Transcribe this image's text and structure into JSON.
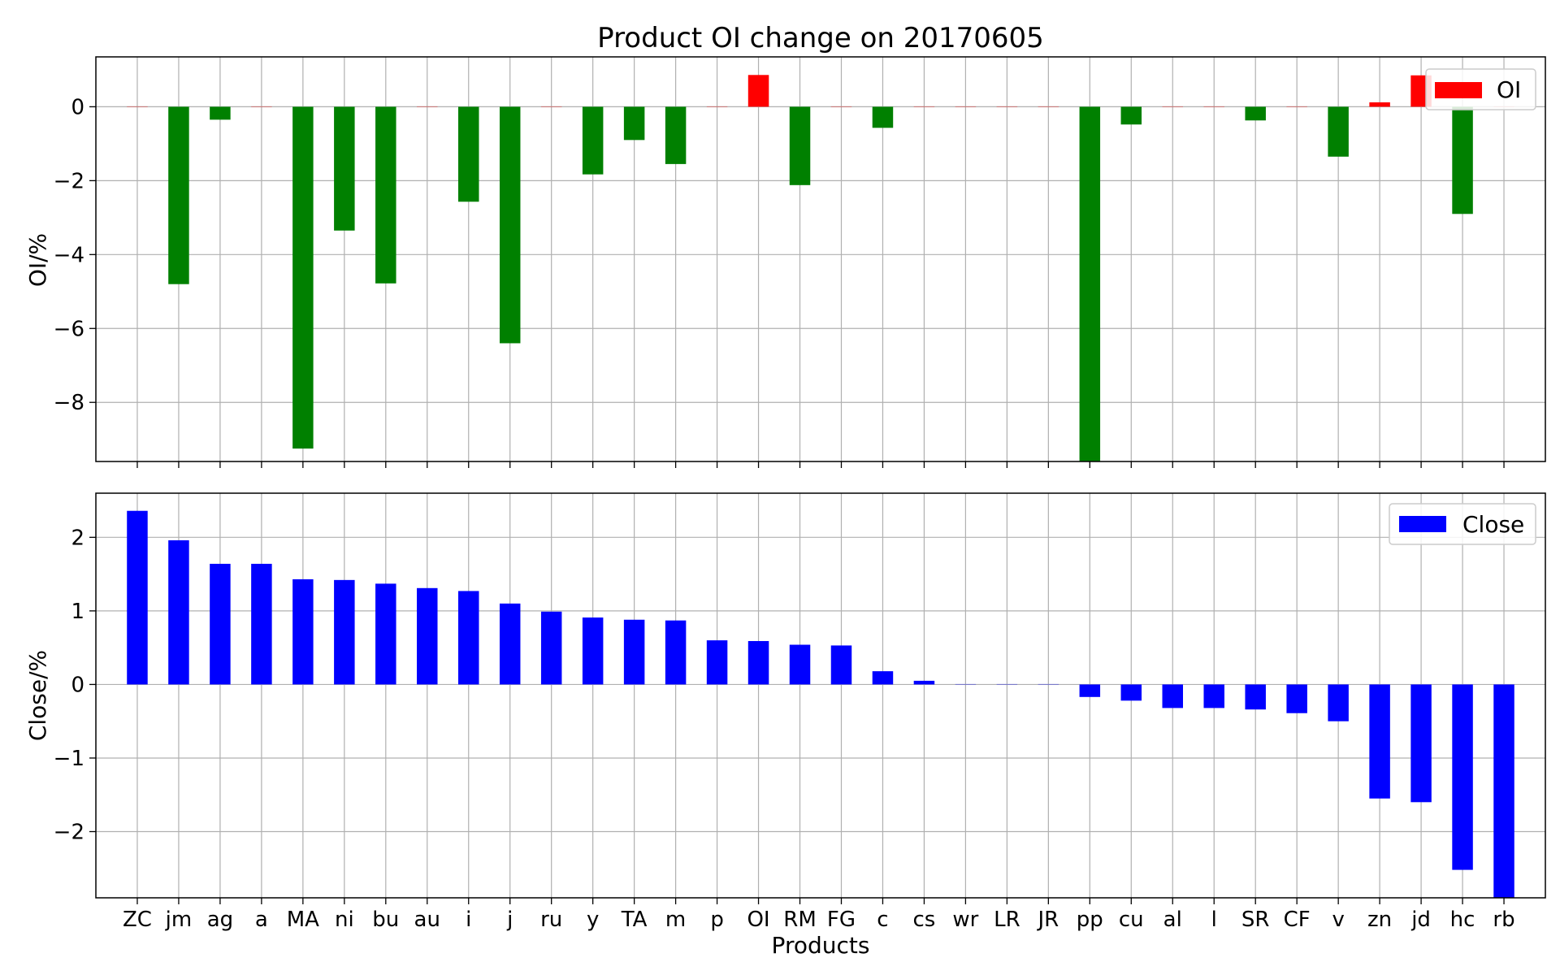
{
  "chart_data": [
    {
      "type": "bar",
      "title": "Product OI change on 20170605",
      "xlabel": "",
      "ylabel": "OI/%",
      "ylim": [
        -9.6,
        1.35
      ],
      "yticks": [
        "0",
        "−2",
        "−4",
        "−6",
        "−8"
      ],
      "ytick_values": [
        0,
        -2,
        -4,
        -6,
        -8
      ],
      "grid": true,
      "legend": "top-right",
      "categories": [
        "ZC",
        "jm",
        "ag",
        "a",
        "MA",
        "ni",
        "bu",
        "au",
        "i",
        "j",
        "ru",
        "y",
        "TA",
        "m",
        "p",
        "OI",
        "RM",
        "FG",
        "c",
        "cs",
        "wr",
        "LR",
        "JR",
        "pp",
        "cu",
        "al",
        "l",
        "SR",
        "CF",
        "v",
        "zn",
        "jd",
        "hc",
        "rb"
      ],
      "series": [
        {
          "name": "OI",
          "values": [
            0,
            -4.8,
            -0.35,
            0,
            -9.25,
            -3.35,
            -4.78,
            0,
            -2.57,
            -6.4,
            0,
            -1.83,
            -0.9,
            -1.55,
            0,
            0.86,
            -2.12,
            0,
            -0.57,
            0,
            0,
            0,
            0,
            -9.6,
            -0.48,
            0,
            0,
            -0.37,
            0,
            -1.35,
            0.12,
            0.85,
            -2.9,
            0
          ],
          "color_positive": "#ff0000",
          "color_negative": "#008000"
        }
      ]
    },
    {
      "type": "bar",
      "title": "",
      "xlabel": "Products",
      "ylabel": "Close/%",
      "ylim": [
        -2.9,
        2.6
      ],
      "yticks": [
        "2",
        "1",
        "0",
        "−1",
        "−2"
      ],
      "ytick_values": [
        2,
        1,
        0,
        -1,
        -2
      ],
      "grid": true,
      "legend": "top-right",
      "categories": [
        "ZC",
        "jm",
        "ag",
        "a",
        "MA",
        "ni",
        "bu",
        "au",
        "i",
        "j",
        "ru",
        "y",
        "TA",
        "m",
        "p",
        "OI",
        "RM",
        "FG",
        "c",
        "cs",
        "wr",
        "LR",
        "JR",
        "pp",
        "cu",
        "al",
        "l",
        "SR",
        "CF",
        "v",
        "zn",
        "jd",
        "hc",
        "rb"
      ],
      "series": [
        {
          "name": "Close",
          "values": [
            2.36,
            1.96,
            1.64,
            1.64,
            1.43,
            1.42,
            1.37,
            1.31,
            1.27,
            1.1,
            0.99,
            0.91,
            0.88,
            0.87,
            0.6,
            0.59,
            0.54,
            0.53,
            0.18,
            0.05,
            0,
            0,
            0,
            -0.17,
            -0.22,
            -0.32,
            -0.32,
            -0.34,
            -0.39,
            -0.5,
            -1.55,
            -1.6,
            -2.52,
            -2.9
          ],
          "color": "#0000ff"
        }
      ]
    }
  ]
}
